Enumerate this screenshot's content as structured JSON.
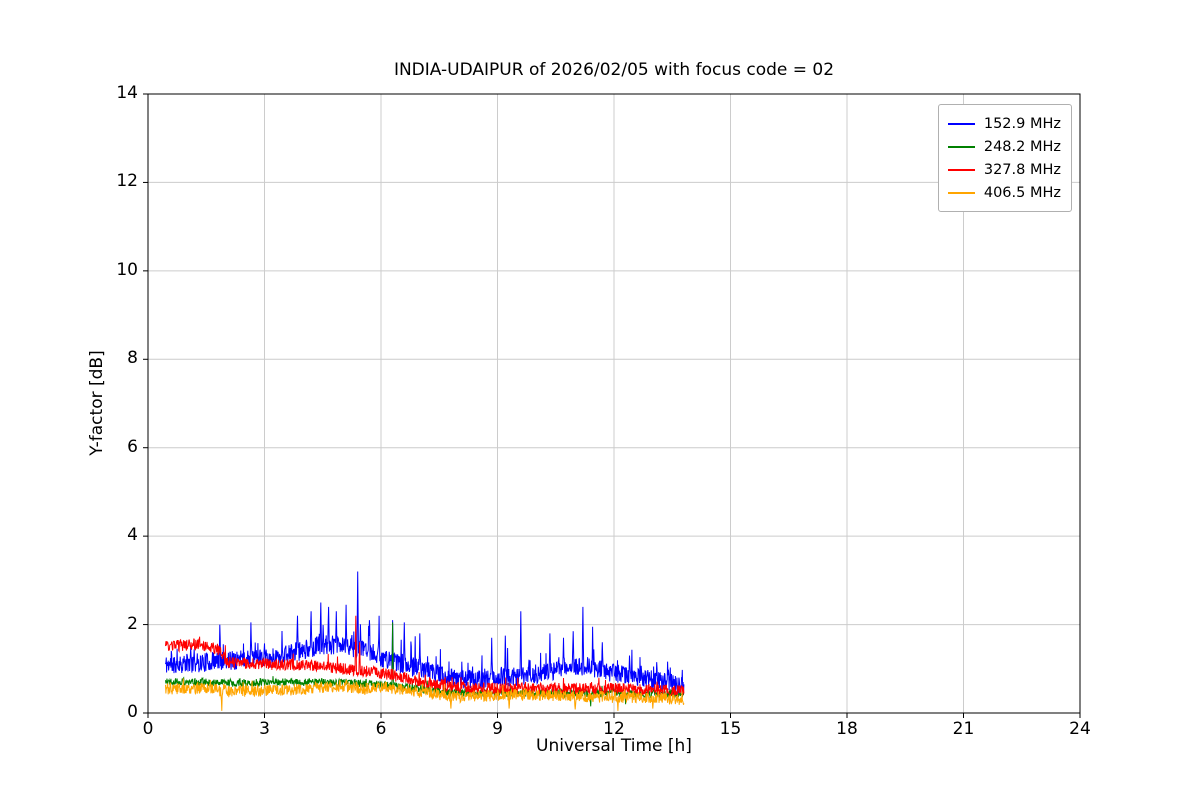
{
  "chart": {
    "title": "INDIA-UDAIPUR of 2026/02/05 with focus code = 02",
    "xlabel": "Universal Time [h]",
    "ylabel": "Y-factor [dB]",
    "xlim": [
      0,
      24
    ],
    "ylim": [
      0,
      14
    ],
    "xticks": [
      0,
      3,
      6,
      9,
      12,
      15,
      18,
      21,
      24
    ],
    "yticks": [
      0,
      2,
      4,
      6,
      8,
      10,
      12,
      14
    ],
    "grid": true,
    "grid_color": "#cccccc",
    "axes_color": "#000000",
    "background": "#ffffff",
    "legend_position": "upper right"
  },
  "chart_data": {
    "type": "line",
    "x_unit": "hours UT",
    "step": 0.01,
    "series": [
      {
        "name": "152.9 MHz",
        "color": "#0000ff",
        "seed": 11,
        "noise": 0.22,
        "spike_prob": 0.06,
        "spike_amp": 0.55,
        "x_start": 0.45,
        "x_end": 13.8,
        "mean_points": [
          [
            0.45,
            1.1
          ],
          [
            1.5,
            1.15
          ],
          [
            2.2,
            1.2
          ],
          [
            3.2,
            1.25
          ],
          [
            3.9,
            1.4
          ],
          [
            4.5,
            1.55
          ],
          [
            5.2,
            1.5
          ],
          [
            5.8,
            1.35
          ],
          [
            6.3,
            1.15
          ],
          [
            7.0,
            1.0
          ],
          [
            7.6,
            0.85
          ],
          [
            8.4,
            0.75
          ],
          [
            9.2,
            0.8
          ],
          [
            10.2,
            0.9
          ],
          [
            10.8,
            1.0
          ],
          [
            11.3,
            1.05
          ],
          [
            12.0,
            0.9
          ],
          [
            12.8,
            0.78
          ],
          [
            13.8,
            0.62
          ]
        ],
        "spikes": [
          [
            1.85,
            2.0
          ],
          [
            2.65,
            2.05
          ],
          [
            3.85,
            2.2
          ],
          [
            4.2,
            2.3
          ],
          [
            4.45,
            2.5
          ],
          [
            4.65,
            2.4
          ],
          [
            4.85,
            2.3
          ],
          [
            5.1,
            2.45
          ],
          [
            5.4,
            3.2
          ],
          [
            5.7,
            2.1
          ],
          [
            5.95,
            2.2
          ],
          [
            6.3,
            2.1
          ],
          [
            6.6,
            2.05
          ],
          [
            7.0,
            1.8
          ],
          [
            8.85,
            1.7
          ],
          [
            9.2,
            1.75
          ],
          [
            9.6,
            2.3
          ],
          [
            10.35,
            1.8
          ],
          [
            10.7,
            1.7
          ],
          [
            10.95,
            1.85
          ],
          [
            11.2,
            2.4
          ],
          [
            11.45,
            1.95
          ],
          [
            11.7,
            1.6
          ],
          [
            12.4,
            1.3
          ],
          [
            13.1,
            1.15
          ]
        ]
      },
      {
        "name": "248.2 MHz",
        "color": "#008000",
        "seed": 22,
        "noise": 0.09,
        "spike_prob": 0.02,
        "spike_amp": 0.15,
        "x_start": 0.45,
        "x_end": 13.8,
        "mean_points": [
          [
            0.45,
            0.72
          ],
          [
            2.0,
            0.68
          ],
          [
            4.0,
            0.7
          ],
          [
            5.5,
            0.68
          ],
          [
            6.5,
            0.6
          ],
          [
            7.2,
            0.52
          ],
          [
            8.0,
            0.46
          ],
          [
            10.0,
            0.45
          ],
          [
            12.0,
            0.45
          ],
          [
            13.8,
            0.42
          ]
        ],
        "spikes": [
          [
            6.3,
            2.05
          ],
          [
            11.4,
            0.15
          ],
          [
            12.3,
            0.2
          ]
        ]
      },
      {
        "name": "327.8 MHz",
        "color": "#ff0000",
        "seed": 33,
        "noise": 0.13,
        "spike_prob": 0.03,
        "spike_amp": 0.2,
        "x_start": 0.45,
        "x_end": 13.8,
        "mean_points": [
          [
            0.45,
            1.5
          ],
          [
            1.2,
            1.55
          ],
          [
            1.8,
            1.45
          ],
          [
            2.05,
            1.15
          ],
          [
            3.0,
            1.1
          ],
          [
            4.2,
            1.08
          ],
          [
            5.0,
            1.0
          ],
          [
            6.0,
            0.9
          ],
          [
            6.6,
            0.8
          ],
          [
            7.2,
            0.68
          ],
          [
            7.8,
            0.6
          ],
          [
            8.6,
            0.56
          ],
          [
            10.5,
            0.55
          ],
          [
            12.5,
            0.55
          ],
          [
            13.8,
            0.5
          ]
        ],
        "spikes": [
          [
            5.35,
            2.2
          ],
          [
            5.45,
            1.6
          ]
        ]
      },
      {
        "name": "406.5 MHz",
        "color": "#ffa500",
        "seed": 44,
        "noise": 0.13,
        "spike_prob": 0.05,
        "spike_amp": 0.18,
        "x_start": 0.45,
        "x_end": 13.8,
        "mean_points": [
          [
            0.45,
            0.55
          ],
          [
            1.5,
            0.55
          ],
          [
            2.1,
            0.48
          ],
          [
            3.0,
            0.5
          ],
          [
            4.2,
            0.55
          ],
          [
            5.0,
            0.6
          ],
          [
            5.6,
            0.55
          ],
          [
            6.1,
            0.58
          ],
          [
            6.8,
            0.5
          ],
          [
            7.4,
            0.42
          ],
          [
            8.1,
            0.36
          ],
          [
            9.0,
            0.4
          ],
          [
            10.5,
            0.4
          ],
          [
            11.8,
            0.36
          ],
          [
            13.0,
            0.34
          ],
          [
            13.8,
            0.3
          ]
        ],
        "spikes": [
          [
            1.9,
            0.05
          ],
          [
            7.8,
            0.1
          ],
          [
            9.3,
            0.1
          ],
          [
            11.0,
            0.08
          ],
          [
            12.1,
            0.05
          ],
          [
            13.0,
            0.1
          ]
        ]
      }
    ]
  }
}
